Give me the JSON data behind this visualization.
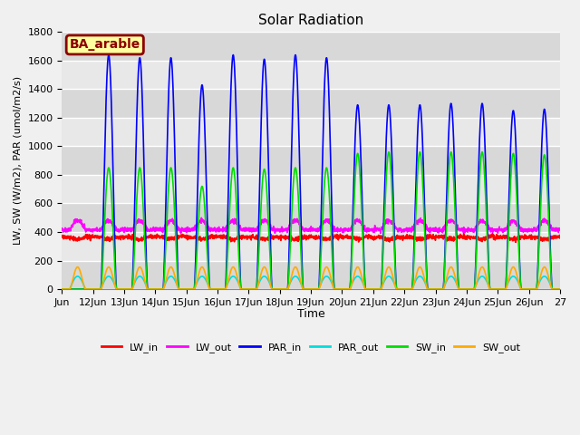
{
  "title": "Solar Radiation",
  "ylabel": "LW, SW (W/m2), PAR (umol/m2/s)",
  "xlabel": "Time",
  "annotation": "BA_arable",
  "ylim": [
    0,
    1800
  ],
  "xlim_days": [
    11,
    27
  ],
  "xtick_days": [
    11,
    12,
    13,
    14,
    15,
    16,
    17,
    18,
    19,
    20,
    21,
    22,
    23,
    24,
    25,
    26,
    27
  ],
  "xtick_labels": [
    "Jun",
    "12Jun",
    "13Jun",
    "14Jun",
    "15Jun",
    "16Jun",
    "17Jun",
    "18Jun",
    "19Jun",
    "20Jun",
    "21Jun",
    "22Jun",
    "23Jun",
    "24Jun",
    "25Jun",
    "26Jun",
    "27"
  ],
  "yticks": [
    0,
    200,
    400,
    600,
    800,
    1000,
    1200,
    1400,
    1600,
    1800
  ],
  "series": {
    "LW_in": {
      "color": "#ff0000",
      "lw": 1.2
    },
    "LW_out": {
      "color": "#ff00ff",
      "lw": 1.2
    },
    "PAR_in": {
      "color": "#0000ff",
      "lw": 1.2
    },
    "PAR_out": {
      "color": "#00dddd",
      "lw": 1.2
    },
    "SW_in": {
      "color": "#00dd00",
      "lw": 1.2
    },
    "SW_out": {
      "color": "#ffaa00",
      "lw": 1.2
    }
  },
  "fig_facecolor": "#f0f0f0",
  "plot_bg_color": "#e8e8e8",
  "band_colors": [
    "#d8d8d8",
    "#e8e8e8"
  ],
  "grid_color": "#ffffff",
  "annotation_bg": "#ffffa0",
  "annotation_border": "#8b0000",
  "annotation_text_color": "#8b0000",
  "title_fontsize": 11,
  "axis_fontsize": 8,
  "tick_fontsize": 8
}
